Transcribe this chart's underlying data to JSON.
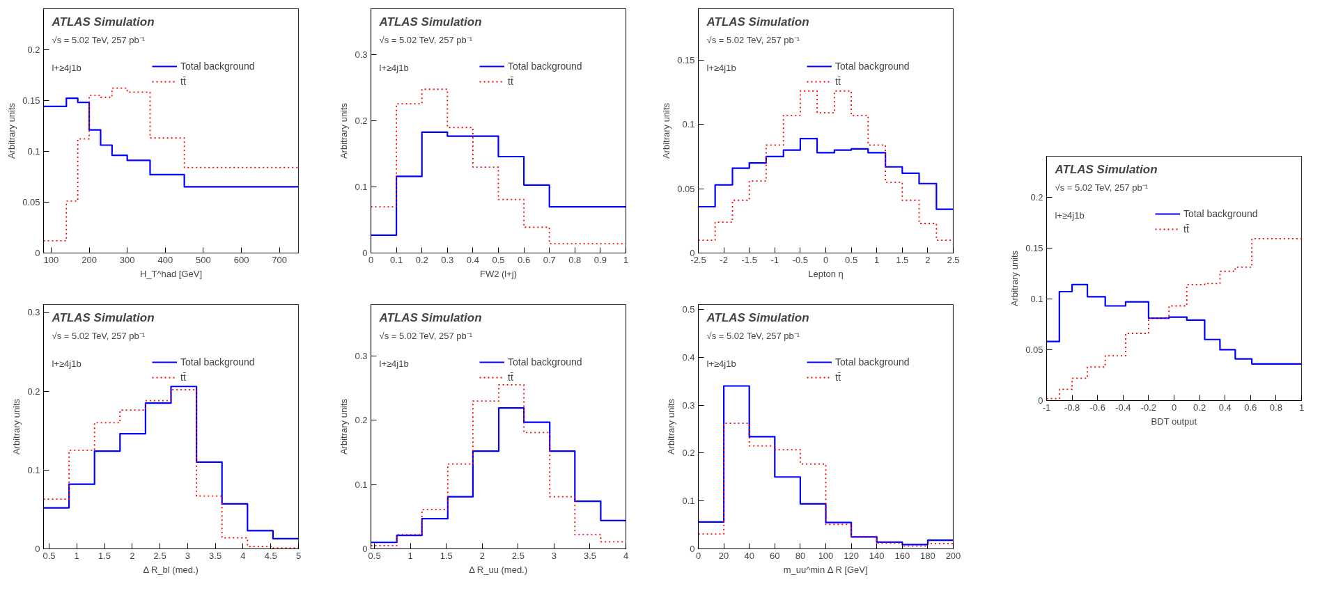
{
  "chart_data": [
    {
      "type": "histogram",
      "xlabel": "H_T^had [GeV]",
      "ylabel": "Arbitrary units",
      "annotations": [
        "ATLAS Simulation",
        "√s = 5.02 TeV, 257 pb⁻¹",
        "l+≥4j1b"
      ],
      "legend": "top right",
      "grid": false,
      "bins": [
        80,
        140,
        170,
        200,
        230,
        260,
        300,
        360,
        450,
        750
      ],
      "series": [
        {
          "name": "Total background",
          "color": "#0000ff",
          "line_style": "solid",
          "values": [
            0.144,
            0.152,
            0.148,
            0.121,
            0.106,
            0.096,
            0.091,
            0.077,
            0.065
          ]
        },
        {
          "name": "tt̄",
          "color": "#ff0000",
          "line_style": "dotted",
          "values": [
            0.012,
            0.051,
            0.112,
            0.155,
            0.153,
            0.162,
            0.158,
            0.113,
            0.084
          ]
        }
      ],
      "xlim": [
        80,
        750
      ],
      "ylim": [
        0,
        0.24
      ],
      "xticks": [
        100,
        200,
        300,
        400,
        500,
        600,
        700
      ],
      "yticks": [
        0,
        0.05,
        0.1,
        0.15,
        0.2
      ]
    },
    {
      "type": "histogram",
      "xlabel": "FW2 (l+j)",
      "ylabel": "Arbitrary units",
      "annotations": [
        "ATLAS Simulation",
        "√s = 5.02 TeV, 257 pb⁻¹",
        "l+≥4j1b"
      ],
      "legend": "top right",
      "grid": false,
      "bins": [
        0,
        0.1,
        0.2,
        0.3,
        0.4,
        0.5,
        0.6,
        0.7,
        0.8,
        0.9,
        1
      ],
      "series": [
        {
          "name": "Total background",
          "color": "#0000ff",
          "line_style": "solid",
          "values": [
            0.027,
            0.116,
            0.183,
            0.177,
            0.177,
            0.146,
            0.103,
            0.07,
            0.07,
            0.07
          ]
        },
        {
          "name": "tt̄",
          "color": "#ff0000",
          "line_style": "dotted",
          "values": [
            0.07,
            0.226,
            0.248,
            0.19,
            0.13,
            0.081,
            0.039,
            0.014,
            0.014,
            0.014
          ]
        }
      ],
      "xlim": [
        0,
        1
      ],
      "ylim": [
        0,
        0.37
      ],
      "xticks": [
        0,
        0.1,
        0.2,
        0.3,
        0.4,
        0.5,
        0.6,
        0.7,
        0.8,
        0.9,
        1
      ],
      "yticks": [
        0,
        0.1,
        0.2,
        0.3
      ]
    },
    {
      "type": "histogram",
      "xlabel": "Lepton η",
      "ylabel": "Arbitrary units",
      "annotations": [
        "ATLAS Simulation",
        "√s = 5.02 TeV, 257 pb⁻¹",
        "l+≥4j1b"
      ],
      "legend": "top right",
      "grid": false,
      "bins": [
        -2.5,
        -2.17,
        -1.83,
        -1.5,
        -1.17,
        -0.83,
        -0.5,
        -0.17,
        0.17,
        0.5,
        0.83,
        1.17,
        1.5,
        1.83,
        2.17,
        2.5
      ],
      "series": [
        {
          "name": "Total background",
          "color": "#0000ff",
          "line_style": "solid",
          "values": [
            0.036,
            0.053,
            0.066,
            0.07,
            0.075,
            0.08,
            0.089,
            0.078,
            0.08,
            0.081,
            0.078,
            0.067,
            0.062,
            0.054,
            0.034
          ]
        },
        {
          "name": "tt̄",
          "color": "#ff0000",
          "line_style": "dotted",
          "values": [
            0.01,
            0.024,
            0.041,
            0.056,
            0.084,
            0.107,
            0.126,
            0.109,
            0.126,
            0.107,
            0.084,
            0.055,
            0.041,
            0.023,
            0.01
          ]
        }
      ],
      "xlim": [
        -2.5,
        2.5
      ],
      "ylim": [
        0,
        0.19
      ],
      "xticks": [
        -2.5,
        -2,
        -1.5,
        -1,
        -0.5,
        0,
        0.5,
        1,
        1.5,
        2,
        2.5
      ],
      "yticks": [
        0,
        0.05,
        0.1,
        0.15
      ]
    },
    {
      "type": "histogram",
      "xlabel": "Δ R_bl (med.)",
      "ylabel": "Arbitrary units",
      "annotations": [
        "ATLAS Simulation",
        "√s = 5.02 TeV, 257 pb⁻¹",
        "l+≥4j1b"
      ],
      "legend": "top right",
      "grid": false,
      "bins": [
        0.4,
        0.86,
        1.32,
        1.78,
        2.24,
        2.7,
        3.16,
        3.62,
        4.08,
        4.54,
        5
      ],
      "series": [
        {
          "name": "Total background",
          "color": "#0000ff",
          "line_style": "solid",
          "values": [
            0.052,
            0.082,
            0.124,
            0.146,
            0.185,
            0.206,
            0.11,
            0.057,
            0.023,
            0.013
          ]
        },
        {
          "name": "tt̄",
          "color": "#ff0000",
          "line_style": "dotted",
          "values": [
            0.063,
            0.125,
            0.16,
            0.176,
            0.188,
            0.202,
            0.067,
            0.014,
            0.003,
            0.001
          ]
        }
      ],
      "xlim": [
        0.4,
        5
      ],
      "ylim": [
        0,
        0.31
      ],
      "xticks": [
        0.5,
        1,
        1.5,
        2,
        2.5,
        3,
        3.5,
        4,
        4.5,
        5
      ],
      "yticks": [
        0,
        0.1,
        0.2,
        0.3
      ]
    },
    {
      "type": "histogram",
      "xlabel": "Δ R_uu (med.)",
      "ylabel": "Arbitrary units",
      "annotations": [
        "ATLAS Simulation",
        "√s = 5.02 TeV, 257 pb⁻¹",
        "l+≥4j1b"
      ],
      "legend": "top right",
      "grid": false,
      "bins": [
        0.45,
        0.81,
        1.16,
        1.52,
        1.87,
        2.23,
        2.58,
        2.94,
        3.29,
        3.65,
        4
      ],
      "series": [
        {
          "name": "Total background",
          "color": "#0000ff",
          "line_style": "solid",
          "values": [
            0.01,
            0.021,
            0.047,
            0.081,
            0.152,
            0.219,
            0.197,
            0.152,
            0.074,
            0.044
          ]
        },
        {
          "name": "tt̄",
          "color": "#ff0000",
          "line_style": "dotted",
          "values": [
            0.005,
            0.022,
            0.061,
            0.132,
            0.23,
            0.255,
            0.181,
            0.081,
            0.022,
            0.011
          ]
        }
      ],
      "xlim": [
        0.45,
        4
      ],
      "ylim": [
        0,
        0.38
      ],
      "xticks": [
        0.5,
        1,
        1.5,
        2,
        2.5,
        3,
        3.5,
        4
      ],
      "yticks": [
        0,
        0.1,
        0.2,
        0.3
      ]
    },
    {
      "type": "histogram",
      "xlabel": "m_uu^min Δ R [GeV]",
      "ylabel": "Arbitrary units",
      "annotations": [
        "ATLAS Simulation",
        "√s = 5.02 TeV, 257 pb⁻¹",
        "l+≥4j1b"
      ],
      "legend": "top right",
      "grid": false,
      "bins": [
        0,
        20,
        40,
        60,
        80,
        100,
        120,
        140,
        160,
        180,
        200
      ],
      "series": [
        {
          "name": "Total background",
          "color": "#0000ff",
          "line_style": "solid",
          "values": [
            0.056,
            0.34,
            0.234,
            0.15,
            0.094,
            0.055,
            0.025,
            0.014,
            0.009,
            0.018
          ]
        },
        {
          "name": "tt̄",
          "color": "#ff0000",
          "line_style": "dotted",
          "values": [
            0.031,
            0.262,
            0.215,
            0.207,
            0.177,
            0.051,
            0.026,
            0.012,
            0.006,
            0.011
          ]
        }
      ],
      "xlim": [
        0,
        200
      ],
      "ylim": [
        0,
        0.51
      ],
      "xticks": [
        0,
        20,
        40,
        60,
        80,
        100,
        120,
        140,
        160,
        180,
        200
      ],
      "yticks": [
        0,
        0.1,
        0.2,
        0.3,
        0.4,
        0.5
      ]
    },
    {
      "type": "histogram",
      "xlabel": "BDT output",
      "ylabel": "Arbitrary units",
      "annotations": [
        "ATLAS Simulation",
        "√s = 5.02 TeV, 257 pb⁻¹",
        "l+≥4j1b"
      ],
      "legend": "top right",
      "grid": false,
      "bins": [
        -1,
        -0.9,
        -0.8,
        -0.68,
        -0.54,
        -0.38,
        -0.2,
        -0.04,
        0.1,
        0.24,
        0.36,
        0.48,
        0.61,
        1
      ],
      "series": [
        {
          "name": "Total background",
          "color": "#0000ff",
          "line_style": "solid",
          "values": [
            0.058,
            0.107,
            0.114,
            0.102,
            0.093,
            0.097,
            0.081,
            0.082,
            0.079,
            0.06,
            0.05,
            0.041,
            0.036
          ]
        },
        {
          "name": "tt̄",
          "color": "#ff0000",
          "line_style": "dotted",
          "values": [
            0.002,
            0.011,
            0.022,
            0.033,
            0.044,
            0.066,
            0.081,
            0.093,
            0.114,
            0.115,
            0.127,
            0.131,
            0.159
          ]
        }
      ],
      "xlim": [
        -1,
        1
      ],
      "ylim": [
        0,
        0.24
      ],
      "xticks": [
        -1,
        -0.8,
        -0.6,
        -0.4,
        -0.2,
        0,
        0.2,
        0.4,
        0.6,
        0.8,
        1
      ],
      "yticks": [
        0,
        0.05,
        0.1,
        0.15,
        0.2
      ]
    }
  ]
}
